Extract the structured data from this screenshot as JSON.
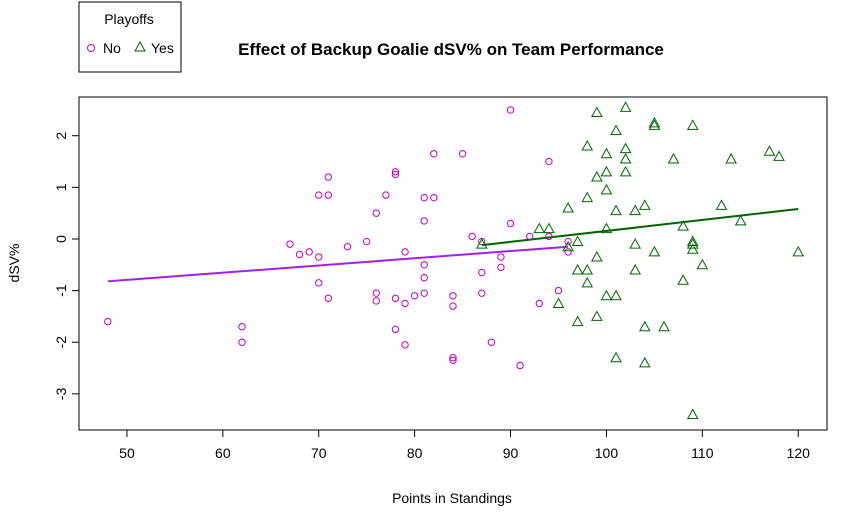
{
  "chart_data": {
    "type": "scatter",
    "title": "Effect of Backup Goalie dSV% on Team Performance",
    "xlabel": "Points in Standings",
    "ylabel": "dSV%",
    "xlim": [
      45,
      123
    ],
    "ylim": [
      -3.7,
      2.75
    ],
    "x_ticks": [
      50,
      60,
      70,
      80,
      90,
      100,
      110,
      120
    ],
    "y_ticks": [
      -3,
      -2,
      -1,
      0,
      1,
      2
    ],
    "grid": false,
    "legend": {
      "title": "Playoffs",
      "placement": "top-left-outside",
      "entries": [
        {
          "label": "No",
          "marker": "circle",
          "color": "#c000c0"
        },
        {
          "label": "Yes",
          "marker": "triangle",
          "color": "#006400"
        }
      ]
    },
    "series": [
      {
        "name": "No",
        "marker": "circle",
        "color": "#c000c0",
        "points": [
          [
            48,
            -1.6
          ],
          [
            62,
            -1.7
          ],
          [
            62,
            -2.0
          ],
          [
            67,
            -0.1
          ],
          [
            68,
            -0.3
          ],
          [
            69,
            -0.25
          ],
          [
            70,
            -0.35
          ],
          [
            70,
            0.85
          ],
          [
            70,
            -0.85
          ],
          [
            71,
            1.2
          ],
          [
            71,
            0.85
          ],
          [
            71,
            -1.15
          ],
          [
            73,
            -0.15
          ],
          [
            75,
            -0.05
          ],
          [
            76,
            0.5
          ],
          [
            76,
            -1.05
          ],
          [
            76,
            -1.2
          ],
          [
            77,
            0.85
          ],
          [
            78,
            1.3
          ],
          [
            78,
            1.25
          ],
          [
            78,
            -1.15
          ],
          [
            78,
            -1.75
          ],
          [
            79,
            -0.25
          ],
          [
            79,
            -1.25
          ],
          [
            79,
            -2.05
          ],
          [
            80,
            -1.1
          ],
          [
            81,
            0.8
          ],
          [
            81,
            0.35
          ],
          [
            81,
            -0.5
          ],
          [
            81,
            -0.75
          ],
          [
            81,
            -1.05
          ],
          [
            82,
            1.65
          ],
          [
            82,
            0.8
          ],
          [
            84,
            -1.1
          ],
          [
            84,
            -1.3
          ],
          [
            84,
            -2.3
          ],
          [
            84,
            -2.35
          ],
          [
            85,
            1.65
          ],
          [
            86,
            0.05
          ],
          [
            87,
            -0.05
          ],
          [
            87,
            -0.65
          ],
          [
            87,
            -1.05
          ],
          [
            88,
            -2.0
          ],
          [
            89,
            -0.35
          ],
          [
            89,
            -0.55
          ],
          [
            90,
            2.5
          ],
          [
            90,
            0.3
          ],
          [
            91,
            -2.45
          ],
          [
            92,
            0.05
          ],
          [
            93,
            -1.25
          ],
          [
            94,
            1.5
          ],
          [
            94,
            0.05
          ],
          [
            95,
            -1.0
          ],
          [
            96,
            -0.05
          ],
          [
            96,
            -0.25
          ]
        ]
      },
      {
        "name": "Yes",
        "marker": "triangle",
        "color": "#006400",
        "points": [
          [
            87,
            -0.1
          ],
          [
            93,
            0.2
          ],
          [
            94,
            0.2
          ],
          [
            95,
            -1.25
          ],
          [
            96,
            0.6
          ],
          [
            96,
            -0.15
          ],
          [
            97,
            -0.05
          ],
          [
            97,
            -0.6
          ],
          [
            97,
            -1.6
          ],
          [
            98,
            1.8
          ],
          [
            98,
            0.8
          ],
          [
            98,
            -0.6
          ],
          [
            98,
            -0.85
          ],
          [
            99,
            2.45
          ],
          [
            99,
            1.2
          ],
          [
            99,
            -0.35
          ],
          [
            99,
            -1.5
          ],
          [
            100,
            1.65
          ],
          [
            100,
            1.3
          ],
          [
            100,
            0.95
          ],
          [
            100,
            0.2
          ],
          [
            100,
            -1.1
          ],
          [
            101,
            2.1
          ],
          [
            101,
            0.55
          ],
          [
            101,
            -1.1
          ],
          [
            101,
            -2.3
          ],
          [
            102,
            2.55
          ],
          [
            102,
            1.75
          ],
          [
            102,
            1.55
          ],
          [
            102,
            1.3
          ],
          [
            103,
            0.55
          ],
          [
            103,
            -0.1
          ],
          [
            103,
            -0.6
          ],
          [
            104,
            0.65
          ],
          [
            104,
            -1.7
          ],
          [
            104,
            -2.4
          ],
          [
            105,
            2.25
          ],
          [
            105,
            2.2
          ],
          [
            105,
            -0.25
          ],
          [
            106,
            -1.7
          ],
          [
            107,
            1.55
          ],
          [
            108,
            0.25
          ],
          [
            108,
            -0.8
          ],
          [
            109,
            2.2
          ],
          [
            109,
            -0.05
          ],
          [
            109,
            -0.1
          ],
          [
            109,
            -0.2
          ],
          [
            109,
            -3.4
          ],
          [
            110,
            -0.5
          ],
          [
            112,
            0.65
          ],
          [
            113,
            1.55
          ],
          [
            114,
            0.35
          ],
          [
            117,
            1.7
          ],
          [
            118,
            1.6
          ],
          [
            120,
            -0.25
          ]
        ]
      }
    ],
    "fit_lines": [
      {
        "series": "No",
        "color": "#a020f0",
        "x": [
          48,
          96
        ],
        "y": [
          -0.82,
          -0.15
        ]
      },
      {
        "series": "Yes",
        "color": "#006400",
        "x": [
          87,
          120
        ],
        "y": [
          -0.12,
          0.58
        ]
      }
    ]
  }
}
